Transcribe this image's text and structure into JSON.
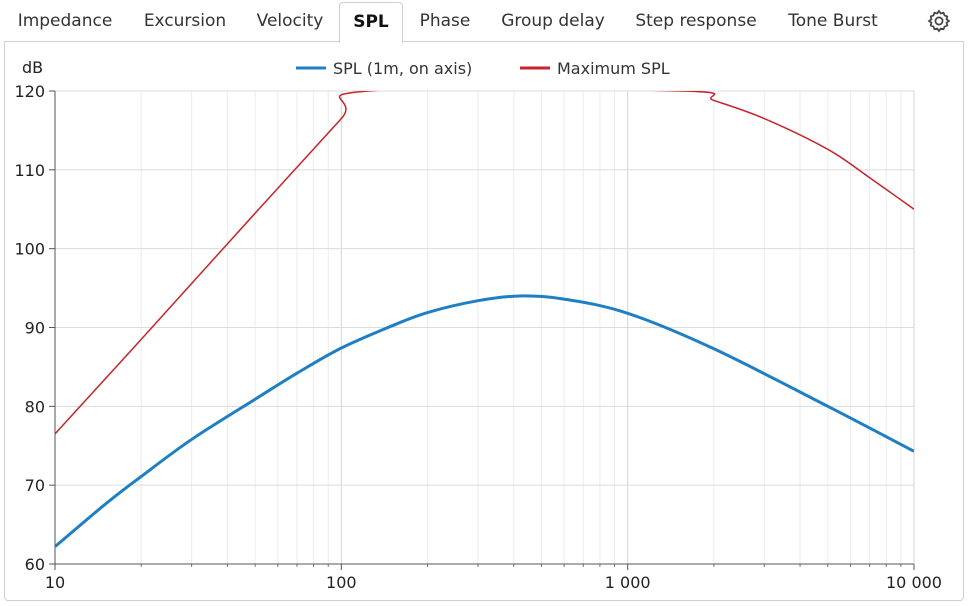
{
  "tabs": [
    {
      "label": "Impedance"
    },
    {
      "label": "Excursion"
    },
    {
      "label": "Velocity"
    },
    {
      "label": "SPL"
    },
    {
      "label": "Phase"
    },
    {
      "label": "Group delay"
    },
    {
      "label": "Step response"
    },
    {
      "label": "Tone Burst"
    }
  ],
  "active_tab": "SPL",
  "settings_icon": "gear-icon",
  "chart_data": {
    "type": "line",
    "title": "",
    "xlabel": "",
    "ylabel": "dB",
    "xscale": "log",
    "xlim": [
      10,
      10000
    ],
    "ylim": [
      60,
      120
    ],
    "x_ticks": [
      10,
      100,
      1000,
      10000
    ],
    "x_tick_labels": [
      "10",
      "100",
      "1 000",
      "10 000"
    ],
    "y_ticks": [
      60,
      70,
      80,
      90,
      100,
      110,
      120
    ],
    "y_tick_labels": [
      "60",
      "70",
      "80",
      "90",
      "100",
      "110",
      "120"
    ],
    "grid": true,
    "legend_position": "top-center",
    "series": [
      {
        "name": "SPL (1m, on axis)",
        "color": "#1f7fc4",
        "x": [
          10,
          15,
          20,
          30,
          50,
          70,
          100,
          150,
          200,
          300,
          420,
          600,
          1000,
          2000,
          5000,
          10000
        ],
        "y": [
          62.2,
          67.6,
          71.1,
          75.8,
          80.9,
          84.2,
          87.4,
          90.2,
          91.9,
          93.4,
          94.0,
          93.6,
          91.8,
          87.3,
          80.0,
          74.3
        ]
      },
      {
        "name": "Maximum SPL",
        "color": "#c8232b",
        "x": [
          10,
          20,
          50,
          100,
          124,
          1550,
          2000,
          3000,
          5000,
          7000,
          10000
        ],
        "y": [
          76.5,
          88.5,
          104.5,
          116.5,
          120.0,
          120.0,
          118.8,
          116.5,
          112.6,
          109.0,
          105.0
        ]
      }
    ]
  }
}
